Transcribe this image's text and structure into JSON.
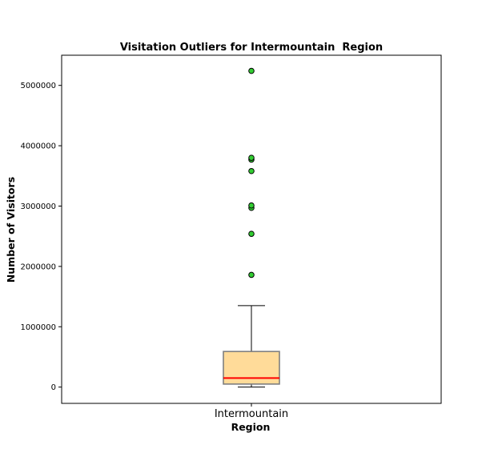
{
  "chart_data": {
    "type": "box",
    "title": "Visitation Outliers for Intermountain  Region",
    "xlabel": "Region",
    "ylabel": "Number of Visitors",
    "categories": [
      "Intermountain"
    ],
    "ylim": [
      -270000,
      5500000
    ],
    "yticks": [
      0,
      1000000,
      2000000,
      3000000,
      4000000,
      5000000
    ],
    "ytick_labels": [
      "0",
      "1000000",
      "2000000",
      "3000000",
      "4000000",
      "5000000"
    ],
    "boxes": [
      {
        "category": "Intermountain",
        "whisker_low": 0,
        "q1": 50000,
        "median": 150000,
        "q3": 590000,
        "whisker_high": 1350000,
        "outliers": [
          1860000,
          2540000,
          2970000,
          3010000,
          3580000,
          3770000,
          3800000,
          5240000
        ]
      }
    ],
    "grid": false,
    "colors": {
      "box_fill": "#ffdb99",
      "box_edge": "#7f7f7f",
      "median": "#ff0000",
      "whisker": "#000000",
      "outlier_fill": "#32cd32",
      "outlier_edge": "#000000"
    }
  }
}
